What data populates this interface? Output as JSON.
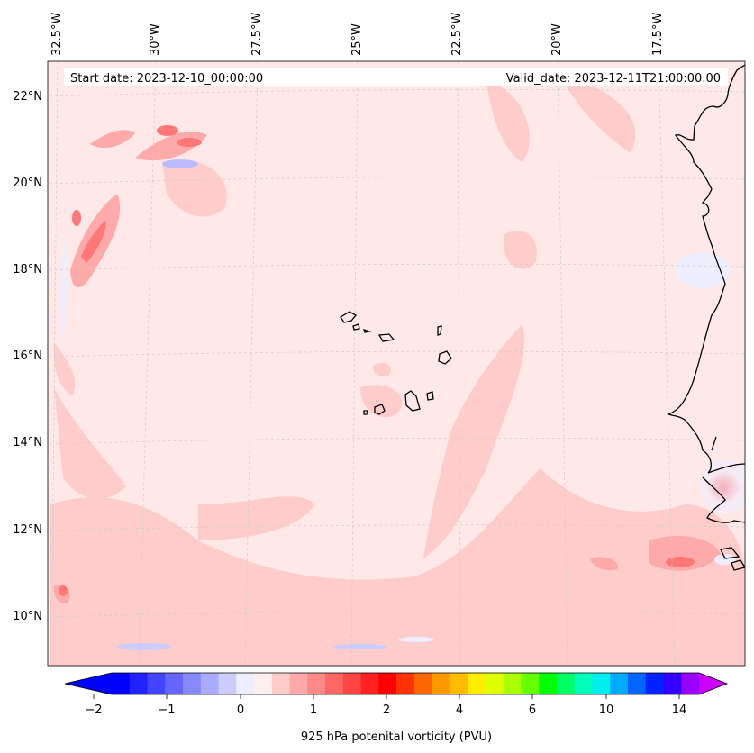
{
  "header": {
    "start_date": "Start date: 2023-12-10_00:00:00",
    "valid_date": "Valid_date: 2023-12-11T21:00:00.00"
  },
  "map": {
    "top_longitude_labels": [
      "32.5°W",
      "30°W",
      "27.5°W",
      "25°W",
      "22.5°W",
      "20°W",
      "17.5°W"
    ],
    "left_latitude_labels": [
      "22°N",
      "20°N",
      "18°N",
      "16°N",
      "14°N",
      "12°N",
      "10°N"
    ],
    "colors": {
      "background": "#ffe8e8",
      "light_red": "#ffcccc",
      "mid_red": "#ffa6a6",
      "strong_red": "#ff6666",
      "light_blue": "#eeeeff",
      "mid_blue": "#bbbbff",
      "coast": "#000000",
      "grid": "#cccccc"
    }
  },
  "colorbar": {
    "label": "925 hPa potenital vorticity (PVU)",
    "tick_labels": [
      "−2",
      "−1",
      "0",
      "1",
      "2",
      "4",
      "6",
      "10",
      "14"
    ],
    "colors": [
      "#0000ff",
      "#2222ff",
      "#4444ff",
      "#6666ff",
      "#8888ff",
      "#aaaaff",
      "#ccccff",
      "#eeeeff",
      "#ffeeee",
      "#ffcccc",
      "#ffaaaa",
      "#ff8888",
      "#ff6666",
      "#ff4444",
      "#ff2222",
      "#ff0000",
      "#ff3300",
      "#ff6600",
      "#ff9900",
      "#ffbb00",
      "#ffee00",
      "#ddff00",
      "#aaff00",
      "#66ff00",
      "#00ff00",
      "#00ff66",
      "#00ffbb",
      "#00eeee",
      "#00aaff",
      "#0066ff",
      "#0022ff",
      "#3300ff",
      "#9900ff"
    ],
    "extend_min_color": "#0000ff",
    "extend_max_color": "#cc00ff"
  }
}
